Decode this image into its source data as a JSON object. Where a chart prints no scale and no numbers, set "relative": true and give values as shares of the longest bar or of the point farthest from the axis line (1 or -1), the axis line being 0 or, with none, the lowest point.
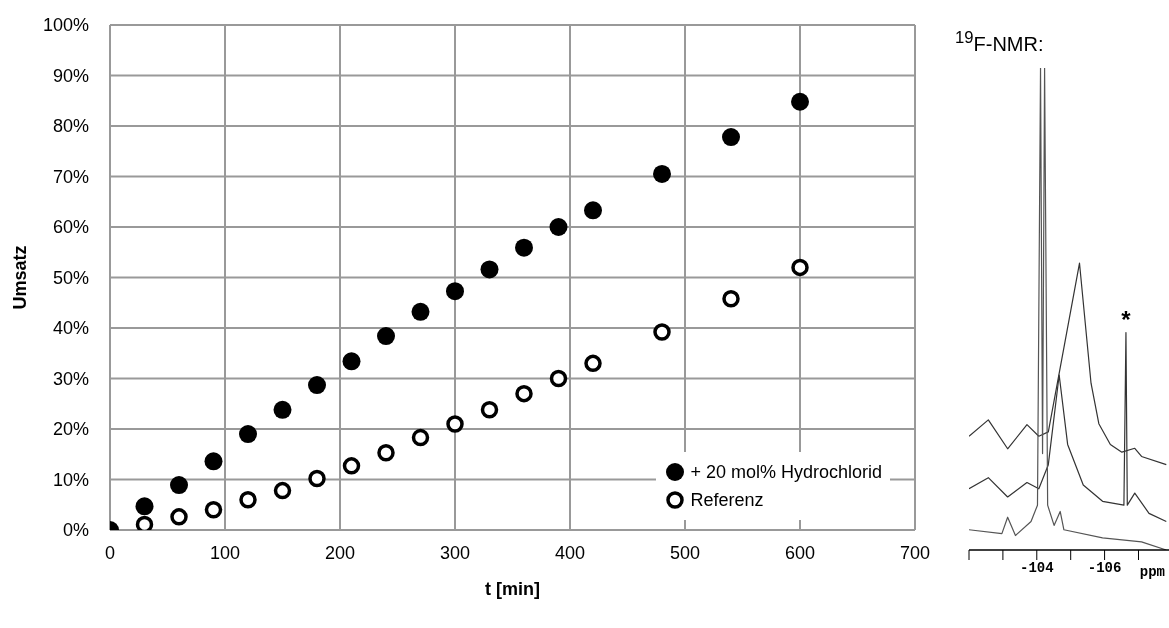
{
  "chart_data": [
    {
      "type": "scatter",
      "xlabel": "t [min]",
      "ylabel": "Umsatz",
      "xlim": [
        0,
        700
      ],
      "xticks": [
        0,
        100,
        200,
        300,
        400,
        500,
        600,
        700
      ],
      "ylim": [
        0,
        100
      ],
      "yticks": [
        {
          "value": 0,
          "label": "0%"
        },
        {
          "value": 10,
          "label": "10%"
        },
        {
          "value": 20,
          "label": "20%"
        },
        {
          "value": 30,
          "label": "30%"
        },
        {
          "value": 40,
          "label": "40%"
        },
        {
          "value": 50,
          "label": "50%"
        },
        {
          "value": 60,
          "label": "60%"
        },
        {
          "value": 70,
          "label": "70%"
        },
        {
          "value": 80,
          "label": "80%"
        },
        {
          "value": 90,
          "label": "90%"
        },
        {
          "value": 100,
          "label": "100%"
        }
      ],
      "grid": true,
      "legend": "bottom right",
      "marker": "circle",
      "series": [
        {
          "name": "+ 20 mol% Hydrochlorid",
          "color": "#000000",
          "x": [
            0,
            30,
            60,
            90,
            120,
            150,
            180,
            210,
            240,
            270,
            300,
            330,
            360,
            390,
            420,
            480,
            540,
            600
          ],
          "values": [
            0,
            4.7,
            8.9,
            13.6,
            19,
            23.8,
            28.7,
            33.4,
            38.4,
            43.2,
            47.3,
            51.6,
            55.9,
            60,
            63.3,
            70.5,
            77.8,
            84.8
          ]
        },
        {
          "name": "Referenz",
          "color": "#000000",
          "x": [
            30,
            60,
            90,
            120,
            150,
            180,
            210,
            240,
            270,
            300,
            330,
            360,
            390,
            420,
            480,
            540,
            600
          ],
          "values": [
            1.1,
            2.6,
            4,
            6,
            7.8,
            10.2,
            12.7,
            15.3,
            18.3,
            21,
            23.8,
            27,
            30,
            33,
            39.2,
            45.8,
            52
          ]
        }
      ]
    },
    {
      "type": "line",
      "title": "$^{19}$F-NMR:",
      "xlabel": "ppm",
      "relative": true,
      "xlim": [
        -102,
        -107.9
      ],
      "xticks": [
        {
          "value": -102,
          "label": null
        },
        {
          "value": -103,
          "label": null
        },
        -104,
        {
          "value": -105,
          "label": null
        },
        -106,
        {
          "value": -107,
          "label": null
        }
      ],
      "tick_labels": "x",
      "grid": false,
      "marker": "none",
      "line_style": "solid",
      "annotations": [
        {
          "text": "*",
          "x": -106.63,
          "y": 0.451
        }
      ],
      "series": [
        {
          "color": "#333333",
          "x": [
            -102,
            -102.57,
            -103.14,
            -103.71,
            -104.06,
            -104.34,
            -104.8,
            -105.26,
            -105.6,
            -105.83,
            -106.17,
            -106.51,
            -106.89,
            -107.09,
            -107.82
          ],
          "values": [
            0.236,
            0.27,
            0.21,
            0.26,
            0.236,
            0.245,
            0.42,
            0.595,
            0.346,
            0.262,
            0.219,
            0.203,
            0.211,
            0.194,
            0.177
          ]
        },
        {
          "color": "#333333",
          "x": [
            -102,
            -102.57,
            -103.14,
            -103.71,
            -104.06,
            -104.34,
            -104.66,
            -104.91,
            -105.37,
            -105.94,
            -106.57,
            -106.63,
            -106.67,
            -106.89,
            -107.31,
            -107.82
          ],
          "values": [
            0.127,
            0.15,
            0.11,
            0.14,
            0.127,
            0.177,
            0.363,
            0.219,
            0.135,
            0.101,
            0.093,
            0.451,
            0.093,
            0.118,
            0.076,
            0.059
          ]
        },
        {
          "color": "#555555",
          "x": [
            -102,
            -102.97,
            -103.14,
            -103.37,
            -103.83,
            -104.02,
            -104.11,
            -104.17,
            -104.23,
            -104.32,
            -104.51,
            -104.69,
            -104.8,
            -105.94,
            -107.09,
            -107.82
          ],
          "values": [
            0.042,
            0.034,
            0.068,
            0.03,
            0.059,
            0.093,
            1,
            0.2,
            1,
            0.093,
            0.051,
            0.08,
            0.042,
            0.025,
            0.017,
            0
          ]
        }
      ]
    }
  ]
}
